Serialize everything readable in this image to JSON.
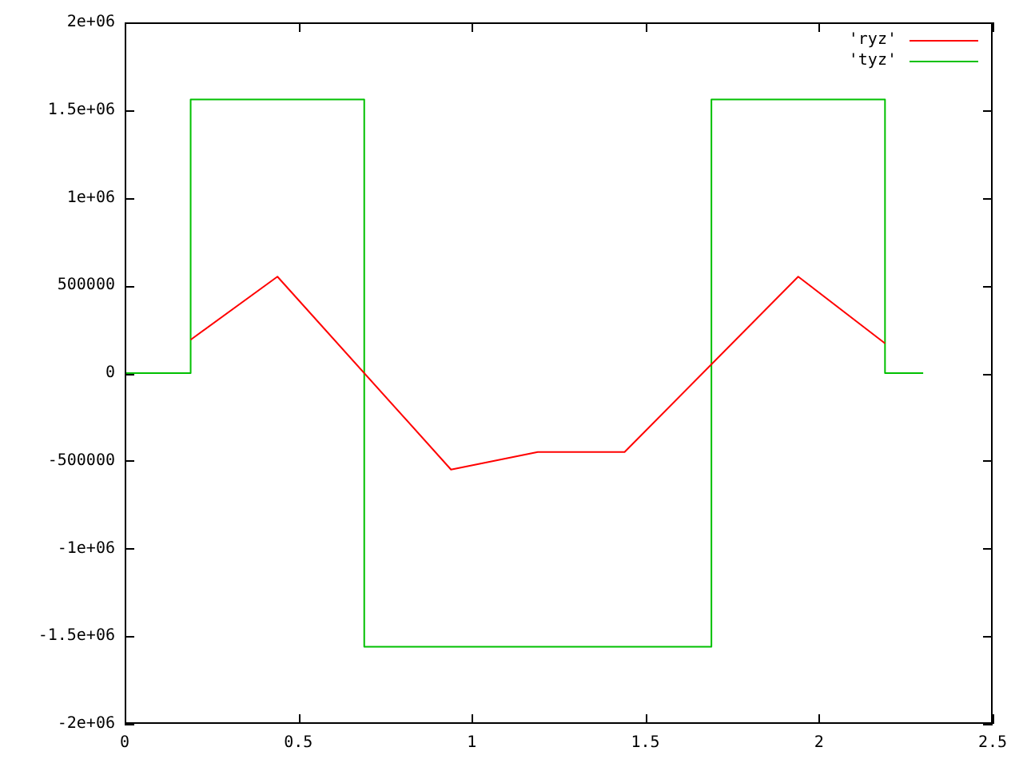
{
  "chart_data": {
    "type": "line",
    "series": [
      {
        "name": "'ryz'",
        "type": "line",
        "color": "#ff0000",
        "x": [
          0.19,
          0.44,
          0.94,
          1.19,
          1.44,
          1.94,
          2.19
        ],
        "values": [
          190000,
          550000,
          -550000,
          -450000,
          -450000,
          550000,
          170000
        ]
      },
      {
        "name": "'tyz'",
        "type": "step",
        "color": "#00c000",
        "x": [
          0,
          0.19,
          0.69,
          1.69,
          2.19,
          2.3
        ],
        "values": [
          0,
          1560000,
          -1560000,
          1560000,
          0,
          0
        ]
      }
    ],
    "xlim": [
      0,
      2.5
    ],
    "xticks": [
      0,
      0.5,
      1,
      1.5,
      2,
      2.5
    ],
    "ylim": [
      -2000000,
      2000000
    ],
    "yticks": [
      {
        "value": -2000000,
        "label": "-2e+06"
      },
      {
        "value": -1500000,
        "label": "-1.5e+06"
      },
      {
        "value": -1000000,
        "label": "-1e+06"
      },
      {
        "value": -500000,
        "label": "-500000"
      },
      0,
      {
        "value": 500000,
        "label": "500000"
      },
      {
        "value": 1000000,
        "label": "1e+06"
      },
      {
        "value": 1500000,
        "label": "1.5e+06"
      },
      {
        "value": 2000000,
        "label": "2e+06"
      }
    ],
    "grid": false,
    "legend": "top right",
    "marker": "none",
    "line_style": "solid"
  }
}
